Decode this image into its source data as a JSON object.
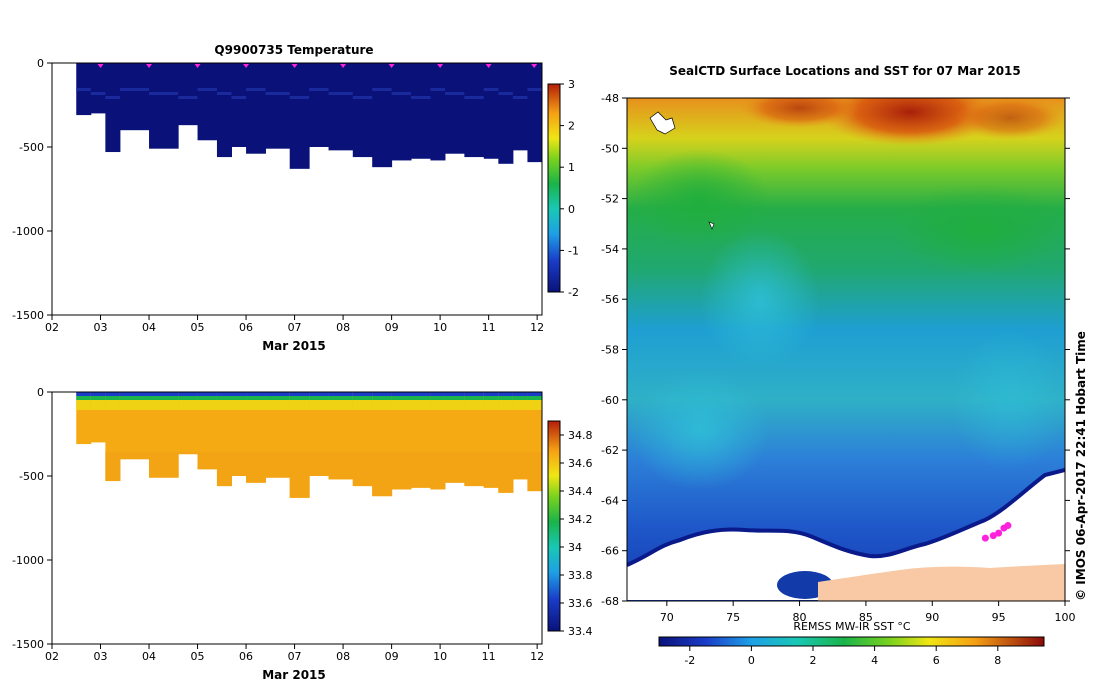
{
  "colors": {
    "temperature_deep": "#0a127a",
    "salinity_main": "#f5aa14",
    "ice": "#ffffff",
    "land": "#f8c9a4",
    "track": "#ff22dd"
  },
  "chart_data": [
    {
      "type": "heatmap",
      "title": "Q9900735  Temperature",
      "xlabel": "Mar 2015",
      "ylabel": "",
      "x_ticks": [
        "02",
        "03",
        "04",
        "05",
        "06",
        "07",
        "08",
        "09",
        "10",
        "11",
        "12"
      ],
      "y_ticks": [
        "0",
        "-500",
        "-1000",
        "-1500"
      ],
      "xlim": [
        2,
        12.1
      ],
      "ylim": [
        -1500,
        0
      ],
      "colorbar": {
        "min": -2,
        "max": 3,
        "ticks": [
          "3",
          "2",
          "1",
          "0",
          "-1",
          "-2"
        ]
      },
      "profile_markers_day": [
        3.0,
        4.0,
        5.0,
        6.0,
        7.0,
        8.0,
        9.0,
        10.0,
        11.0,
        12.0
      ],
      "profile_days": [
        2.5,
        2.8,
        3.1,
        3.4,
        4.0,
        4.6,
        5.0,
        5.4,
        5.7,
        6.0,
        6.4,
        6.9,
        7.3,
        7.7,
        8.2,
        8.6,
        9.0,
        9.4,
        9.8,
        10.1,
        10.5,
        10.9,
        11.2,
        11.5,
        11.8
      ],
      "profile_max_depth": [
        -310,
        -300,
        -530,
        -400,
        -510,
        -370,
        -460,
        -560,
        -500,
        -540,
        -510,
        -630,
        -500,
        -520,
        -560,
        -620,
        -580,
        -570,
        -580,
        -540,
        -560,
        -570,
        -600,
        -520,
        -590
      ],
      "values_note": ""
    },
    {
      "type": "heatmap",
      "title": "",
      "xlabel": "Mar 2015",
      "ylabel": "",
      "x_ticks": [
        "02",
        "03",
        "04",
        "05",
        "06",
        "07",
        "08",
        "09",
        "10",
        "11",
        "12"
      ],
      "y_ticks": [
        "0",
        "-500",
        "-1000",
        "-1500"
      ],
      "xlim": [
        2,
        12.1
      ],
      "ylim": [
        -1500,
        0
      ],
      "colorbar": {
        "min": 33.4,
        "max": 34.9,
        "ticks": [
          "34.8",
          "34.6",
          "34.4",
          "34.2",
          "34",
          "33.8",
          "33.6",
          "33.4"
        ]
      },
      "profile_days": [
        2.5,
        2.8,
        3.1,
        3.4,
        4.0,
        4.6,
        5.0,
        5.4,
        5.7,
        6.0,
        6.4,
        6.9,
        7.3,
        7.7,
        8.2,
        8.6,
        9.0,
        9.4,
        9.8,
        10.1,
        10.5,
        10.9,
        11.2,
        11.5,
        11.8
      ],
      "profile_max_depth": [
        -310,
        -300,
        -530,
        -400,
        -510,
        -370,
        -460,
        -560,
        -500,
        -540,
        -510,
        -630,
        -500,
        -520,
        -560,
        -620,
        -580,
        -570,
        -580,
        -540,
        -560,
        -570,
        -600,
        -520,
        -590
      ]
    },
    {
      "type": "heatmap",
      "title": "SealCTD Surface Locations and SST for 07 Mar 2015",
      "xlabel": "REMSS MW-IR SST °C",
      "ylabel": "",
      "lon_range": [
        67,
        100
      ],
      "lat_range": [
        -68,
        -48
      ],
      "x_ticks": [
        "70",
        "75",
        "80",
        "85",
        "90",
        "95",
        "100"
      ],
      "y_ticks": [
        "-48",
        "-50",
        "-52",
        "-54",
        "-56",
        "-58",
        "-60",
        "-62",
        "-64",
        "-66",
        "-68"
      ],
      "colorbar": {
        "min": -3,
        "max": 9.5,
        "ticks": [
          "-2",
          "0",
          "2",
          "4",
          "6",
          "8"
        ]
      },
      "track_points": [
        [
          94.0,
          -65.5
        ],
        [
          94.6,
          -65.4
        ],
        [
          95.0,
          -65.3
        ],
        [
          95.4,
          -65.1
        ],
        [
          95.7,
          -65.0
        ]
      ],
      "credit": "© IMOS 06-Apr-2017 22:41 Hobart Time"
    }
  ]
}
